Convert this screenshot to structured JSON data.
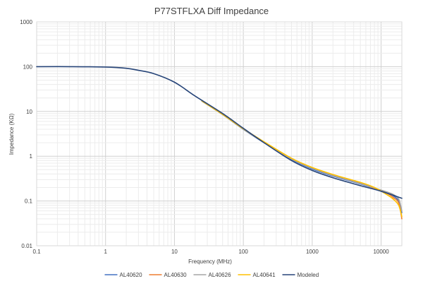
{
  "chart_data": {
    "type": "line",
    "title": "P77STFLXA Diff Impedance",
    "xlabel": "Frequency (MHz)",
    "ylabel": "Impedance (KΩ)",
    "x_scale": "log",
    "y_scale": "log",
    "xlim": [
      0.1,
      20000
    ],
    "ylim": [
      0.01,
      1000
    ],
    "x_ticks": [
      {
        "value": 0.1,
        "label": "0.1"
      },
      {
        "value": 1,
        "label": "1"
      },
      {
        "value": 10,
        "label": "10"
      },
      {
        "value": 100,
        "label": "100"
      },
      {
        "value": 1000,
        "label": "1000"
      },
      {
        "value": 10000,
        "label": "10000"
      }
    ],
    "y_ticks": [
      {
        "value": 0.01,
        "label": "0.01"
      },
      {
        "value": 0.1,
        "label": "0.1"
      },
      {
        "value": 1,
        "label": "1"
      },
      {
        "value": 10,
        "label": "10"
      },
      {
        "value": 100,
        "label": "100"
      },
      {
        "value": 1000,
        "label": "1000"
      }
    ],
    "grid": true,
    "legend_position": "bottom",
    "series": [
      {
        "name": "AL40620",
        "color": "#4472c4",
        "points": [
          [
            25,
            17
          ],
          [
            50,
            8.5
          ],
          [
            100,
            4.0
          ],
          [
            200,
            2.0
          ],
          [
            500,
            0.85
          ],
          [
            1000,
            0.52
          ],
          [
            2000,
            0.36
          ],
          [
            5000,
            0.24
          ],
          [
            8000,
            0.19
          ],
          [
            12000,
            0.155
          ],
          [
            15000,
            0.13
          ],
          [
            18000,
            0.1
          ],
          [
            20000,
            0.055
          ]
        ]
      },
      {
        "name": "AL40630",
        "color": "#ed7d31",
        "points": [
          [
            25,
            17.5
          ],
          [
            50,
            8.7
          ],
          [
            100,
            4.1
          ],
          [
            200,
            2.05
          ],
          [
            500,
            0.88
          ],
          [
            1000,
            0.55
          ],
          [
            2000,
            0.38
          ],
          [
            5000,
            0.25
          ],
          [
            8000,
            0.19
          ],
          [
            12000,
            0.15
          ],
          [
            15000,
            0.12
          ],
          [
            18000,
            0.09
          ],
          [
            20000,
            0.04
          ]
        ]
      },
      {
        "name": "AL40626",
        "color": "#a5a5a5",
        "points": [
          [
            25,
            17
          ],
          [
            50,
            8.6
          ],
          [
            100,
            4.05
          ],
          [
            200,
            2.02
          ],
          [
            500,
            0.87
          ],
          [
            1000,
            0.54
          ],
          [
            2000,
            0.37
          ],
          [
            5000,
            0.245
          ],
          [
            8000,
            0.195
          ],
          [
            12000,
            0.16
          ],
          [
            15000,
            0.14
          ],
          [
            18000,
            0.11
          ],
          [
            20000,
            0.06
          ]
        ]
      },
      {
        "name": "AL40641",
        "color": "#ffc000",
        "points": [
          [
            25,
            17.2
          ],
          [
            50,
            8.6
          ],
          [
            100,
            4.1
          ],
          [
            200,
            2.1
          ],
          [
            500,
            0.9
          ],
          [
            1000,
            0.56
          ],
          [
            2000,
            0.39
          ],
          [
            5000,
            0.26
          ],
          [
            8000,
            0.2
          ],
          [
            12000,
            0.14
          ],
          [
            15000,
            0.11
          ],
          [
            18000,
            0.08
          ],
          [
            20000,
            0.045
          ]
        ]
      },
      {
        "name": "Modeled",
        "color": "#264478",
        "points": [
          [
            0.1,
            100
          ],
          [
            0.3,
            100
          ],
          [
            1,
            98
          ],
          [
            2,
            92
          ],
          [
            3,
            83
          ],
          [
            5,
            70
          ],
          [
            10,
            45
          ],
          [
            20,
            22
          ],
          [
            50,
            9
          ],
          [
            100,
            4.2
          ],
          [
            200,
            2.0
          ],
          [
            500,
            0.8
          ],
          [
            1000,
            0.48
          ],
          [
            2000,
            0.33
          ],
          [
            5000,
            0.22
          ],
          [
            10000,
            0.165
          ],
          [
            20000,
            0.115
          ]
        ]
      }
    ]
  }
}
